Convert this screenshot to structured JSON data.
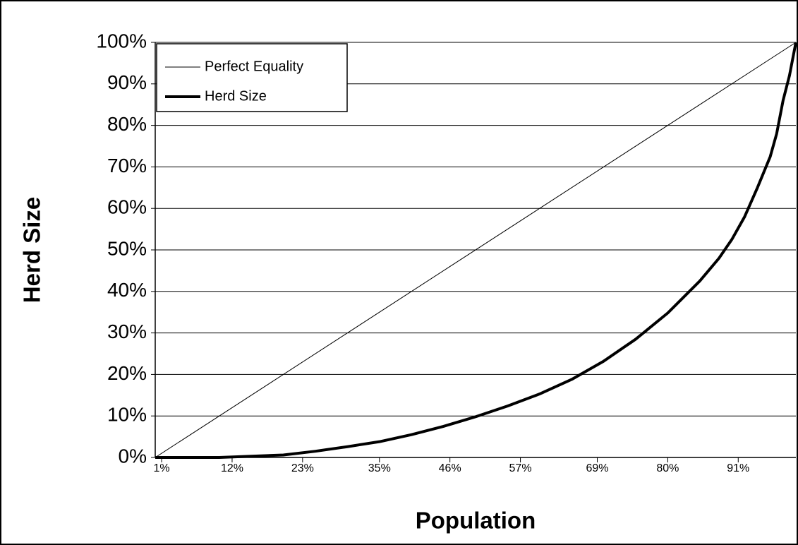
{
  "chart_data": {
    "type": "line",
    "x_label": "Population",
    "y_label": "Herd Size",
    "xlim": [
      0,
      100
    ],
    "ylim": [
      0,
      100
    ],
    "xticks": [
      {
        "value": 1,
        "label": "1%"
      },
      {
        "value": 12,
        "label": "12%"
      },
      {
        "value": 23,
        "label": "23%"
      },
      {
        "value": 35,
        "label": "35%"
      },
      {
        "value": 46,
        "label": "46%"
      },
      {
        "value": 57,
        "label": "57%"
      },
      {
        "value": 69,
        "label": "69%"
      },
      {
        "value": 80,
        "label": "80%"
      },
      {
        "value": 91,
        "label": "91%"
      }
    ],
    "yticks": [
      {
        "value": 0,
        "label": "0%"
      },
      {
        "value": 10,
        "label": "10%"
      },
      {
        "value": 20,
        "label": "20%"
      },
      {
        "value": 30,
        "label": "30%"
      },
      {
        "value": 40,
        "label": "40%"
      },
      {
        "value": 50,
        "label": "50%"
      },
      {
        "value": 60,
        "label": "60%"
      },
      {
        "value": 70,
        "label": "70%"
      },
      {
        "value": 80,
        "label": "80%"
      },
      {
        "value": 90,
        "label": "90%"
      },
      {
        "value": 100,
        "label": "100%"
      }
    ],
    "grid": true,
    "legend": "upper left",
    "series": [
      {
        "name": "Perfect Equality",
        "color": "#000000",
        "line_width": 1,
        "x": [
          0,
          100
        ],
        "values": [
          0,
          100
        ]
      },
      {
        "name": "Herd Size",
        "color": "#000000",
        "line_width": 4,
        "x": [
          0,
          10,
          20,
          25,
          30,
          35,
          40,
          45,
          50,
          55,
          60,
          65,
          70,
          75,
          80,
          85,
          88,
          90,
          92,
          94,
          96,
          97,
          98,
          99,
          100
        ],
        "values": [
          0,
          0,
          0.6,
          1.5,
          2.6,
          3.8,
          5.5,
          7.5,
          9.8,
          12.4,
          15.3,
          18.8,
          23.2,
          28.5,
          34.8,
          42.5,
          48,
          52.5,
          58,
          65,
          72.5,
          78,
          86,
          92,
          100
        ]
      }
    ]
  }
}
